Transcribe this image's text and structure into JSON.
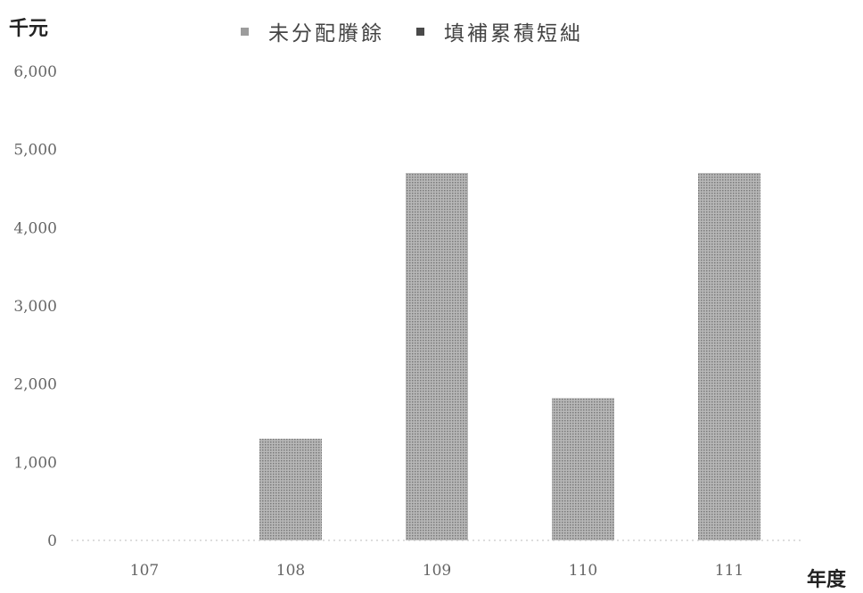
{
  "chart_data": {
    "type": "bar",
    "unit_label": "千元",
    "xlabel": "年度",
    "categories": [
      "107",
      "108",
      "109",
      "110",
      "111"
    ],
    "series": [
      {
        "name": "未分配賸餘",
        "color": "#9c9c9c",
        "values": [
          0,
          1300,
          4700,
          1820,
          4700
        ]
      },
      {
        "name": "填補累積短絀",
        "color": "#4a4a4a",
        "values": [
          0,
          0,
          0,
          0,
          0
        ]
      }
    ],
    "yticks": [
      "0",
      "1,000",
      "2,000",
      "3,000",
      "4,000",
      "5,000",
      "6,000"
    ],
    "ylim": [
      0,
      6000
    ],
    "grid": false,
    "legend_position": "top"
  }
}
